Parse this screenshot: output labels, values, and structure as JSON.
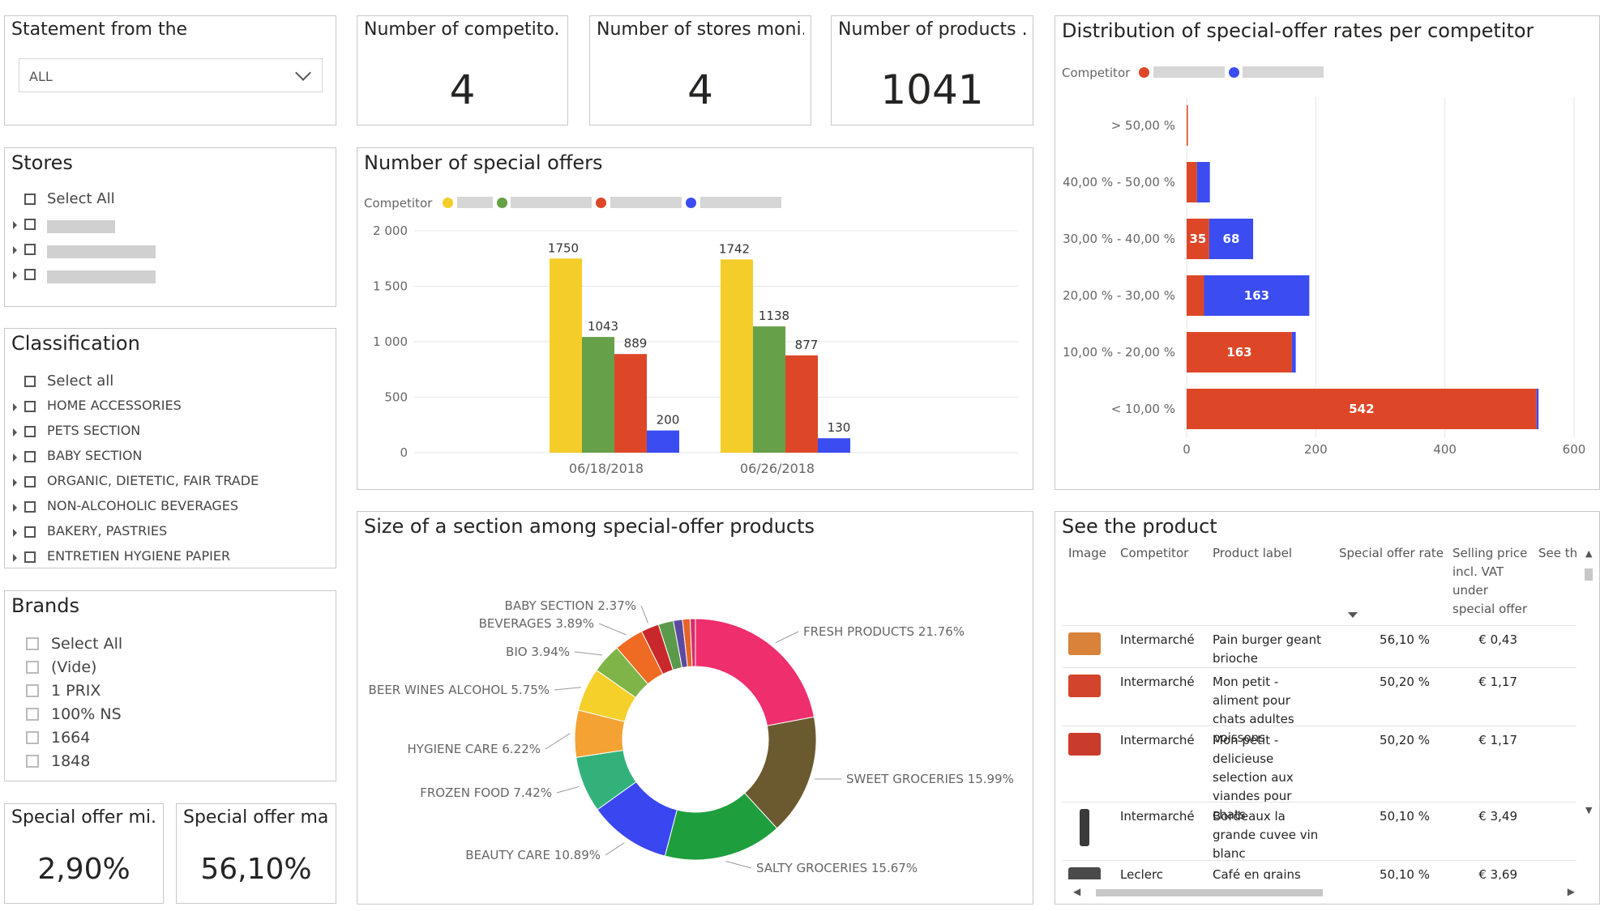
{
  "statement": {
    "title": "Statement from the",
    "selected": "ALL"
  },
  "cards": {
    "competitors": {
      "title": "Number of competito...",
      "value": "4"
    },
    "stores": {
      "title": "Number of stores moni...",
      "value": "4"
    },
    "products": {
      "title": "Number of products ...",
      "value": "1041"
    },
    "offer_min": {
      "title": "Special offer mi...",
      "value": "2,90%"
    },
    "offer_max": {
      "title": "Special offer ma...",
      "value": "56,10%"
    }
  },
  "stores": {
    "title": "Stores",
    "items": [
      "Select All",
      "",
      "",
      "",
      ""
    ]
  },
  "classification": {
    "title": "Classification",
    "items": [
      "Select all",
      "HOME ACCESSORIES",
      "PETS SECTION",
      "BABY SECTION",
      "ORGANIC, DIETETIC, FAIR TRADE",
      "NON-ALCOHOLIC BEVERAGES",
      "BAKERY, PASTRIES",
      "ENTRETIEN HYGIENE PAPIER"
    ]
  },
  "brands": {
    "title": "Brands",
    "items": [
      "Select All",
      "(Vide)",
      "1 PRIX",
      "100% NS",
      "1664",
      "1848"
    ]
  },
  "colors": {
    "yellow": "#f5cd2a",
    "green": "#66a048",
    "red": "#dd4728",
    "blue": "#3b4cf0"
  },
  "chart_data": [
    {
      "type": "bar",
      "title": "Number of special offers",
      "legend_title": "Competitor",
      "categories": [
        "06/18/2018",
        "06/26/2018"
      ],
      "series": [
        {
          "color": "#f5cd2a",
          "values": [
            1750,
            1742
          ]
        },
        {
          "color": "#66a048",
          "values": [
            1043,
            1138
          ]
        },
        {
          "color": "#dd4728",
          "values": [
            889,
            877
          ]
        },
        {
          "color": "#3b4cf0",
          "values": [
            200,
            130
          ]
        }
      ],
      "yticks": [
        "0",
        "500",
        "1 000",
        "1 500",
        "2 000"
      ],
      "ylim": [
        0,
        2000
      ]
    },
    {
      "type": "bar",
      "orientation": "horizontal",
      "stacked": true,
      "title": "Distribution of special-offer rates per competitor",
      "legend_title": "Competitor",
      "categories": [
        "> 50,00 %",
        "40,00 % - 50,00 %",
        "30,00 % - 40,00 %",
        "20,00 % - 30,00 %",
        "10,00 % - 20,00 %",
        "< 10,00 %"
      ],
      "series": [
        {
          "color": "#dd4728",
          "values": [
            2,
            16,
            35,
            27,
            163,
            542
          ],
          "labels": [
            "",
            "",
            "35",
            "",
            "163",
            "542"
          ]
        },
        {
          "color": "#3b4cf0",
          "values": [
            0,
            20,
            68,
            163,
            6,
            3
          ],
          "labels": [
            "",
            "",
            "68",
            "163",
            "",
            ""
          ]
        }
      ],
      "xticks": [
        "0",
        "200",
        "400",
        "600"
      ],
      "xlim": [
        0,
        600
      ]
    },
    {
      "type": "pie",
      "donut": true,
      "title": "Size of a section among special-offer products",
      "slices": [
        {
          "label": "FRESH PRODUCTS 21.76%",
          "value": 21.76,
          "color": "#ee2e6d"
        },
        {
          "label": "SWEET GROCERIES 15.99%",
          "value": 15.99,
          "color": "#6b5a30"
        },
        {
          "label": "SALTY GROCERIES 15.67%",
          "value": 15.67,
          "color": "#1f9e3d"
        },
        {
          "label": "BEAUTY CARE 10.89%",
          "value": 10.89,
          "color": "#3a46f0"
        },
        {
          "label": "FROZEN FOOD 7.42%",
          "value": 7.42,
          "color": "#32b27a"
        },
        {
          "label": "HYGIENE CARE 6.22%",
          "value": 6.22,
          "color": "#f4a233"
        },
        {
          "label": "BEER WINES ALCOHOL 5.75%",
          "value": 5.75,
          "color": "#f5d02b"
        },
        {
          "label": "BIO 3.94%",
          "value": 3.94,
          "color": "#7fb548"
        },
        {
          "label": "BEVERAGES 3.89%",
          "value": 3.89,
          "color": "#ef6a23"
        },
        {
          "label": "BABY SECTION 2.37%",
          "value": 2.37,
          "color": "#c8272b"
        },
        {
          "label": "",
          "value": 2.0,
          "color": "#5a9a4a"
        },
        {
          "label": "",
          "value": 1.2,
          "color": "#5b4aa0"
        },
        {
          "label": "",
          "value": 1.0,
          "color": "#e6642a"
        },
        {
          "label": "",
          "value": 0.7,
          "color": "#d92c6a"
        }
      ]
    }
  ],
  "table": {
    "title": "See the product",
    "headers": [
      "Image",
      "Competitor",
      "Product label",
      "Special offer rate",
      "Selling price incl. VAT under special offer",
      "See the"
    ],
    "rows": [
      {
        "competitor": "Intermarché",
        "label": "Pain burger geant brioche",
        "rate": "56,10 %",
        "price": "€ 0,43",
        "img_color": "#d9833a"
      },
      {
        "competitor": "Intermarché",
        "label": "Mon petit - aliment pour chats adultes poissons",
        "rate": "50,20 %",
        "price": "€ 1,17",
        "img_color": "#d2452c"
      },
      {
        "competitor": "Intermarché",
        "label": "Mon petit - delicieuse selection aux viandes pour chats",
        "rate": "50,20 %",
        "price": "€ 1,17",
        "img_color": "#c93c2c"
      },
      {
        "competitor": "Intermarché",
        "label": "Bordeaux la grande cuvee vin blanc",
        "rate": "50,10 %",
        "price": "€ 3,49",
        "img_color": "#3a3a3a"
      },
      {
        "competitor": "Leclerc Drive",
        "label": "Café en grains",
        "rate": "50,10 %",
        "price": "€ 3,69",
        "img_color": "#4a4a4a"
      }
    ]
  }
}
